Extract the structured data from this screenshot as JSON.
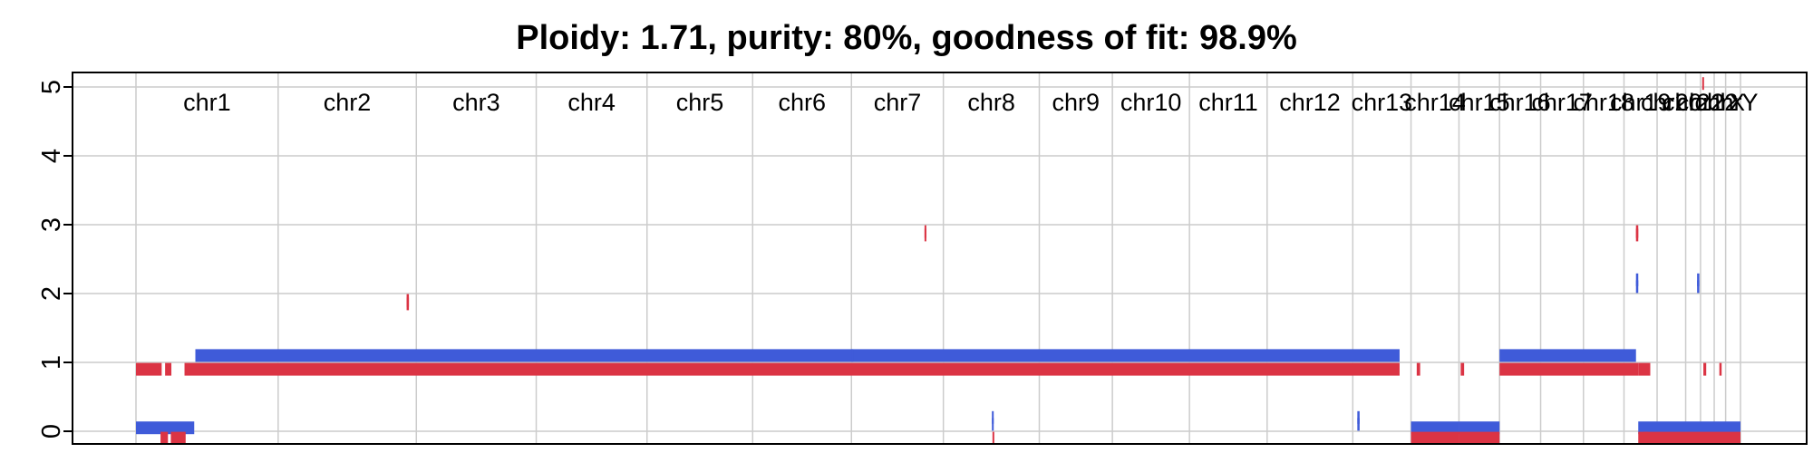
{
  "chart_data": {
    "type": "copy-number-segments",
    "title": "Ploidy: 1.71, purity: 80%, goodness of fit: 98.9%",
    "xlabel": "",
    "ylabel": "",
    "ylim": [
      0,
      5
    ],
    "yticks": [
      0,
      1,
      2,
      3,
      4,
      5
    ],
    "grid": true,
    "colors": {
      "major": "#3f5bd9",
      "minor": "#db3444",
      "grid": "#cccccc"
    },
    "chromosomes": [
      {
        "name": "chr1",
        "start": 0.0,
        "end": 249.0
      },
      {
        "name": "chr2",
        "start": 249.0,
        "end": 491.0
      },
      {
        "name": "chr3",
        "start": 491.0,
        "end": 701.0
      },
      {
        "name": "chr4",
        "start": 701.0,
        "end": 895.0
      },
      {
        "name": "chr5",
        "start": 895.0,
        "end": 1080.0
      },
      {
        "name": "chr6",
        "start": 1080.0,
        "end": 1253.0
      },
      {
        "name": "chr7",
        "start": 1253.0,
        "end": 1414.0
      },
      {
        "name": "chr8",
        "start": 1414.0,
        "end": 1582.0
      },
      {
        "name": "chr9",
        "start": 1582.0,
        "end": 1710.0
      },
      {
        "name": "chr10",
        "start": 1710.0,
        "end": 1845.0
      },
      {
        "name": "chr11",
        "start": 1845.0,
        "end": 1981.0
      },
      {
        "name": "chr12",
        "start": 1981.0,
        "end": 2131.0
      },
      {
        "name": "chr13",
        "start": 2131.0,
        "end": 2233.0
      },
      {
        "name": "chr14",
        "start": 2233.0,
        "end": 2317.0
      },
      {
        "name": "chr15",
        "start": 2317.0,
        "end": 2388.0
      },
      {
        "name": "chr16",
        "start": 2388.0,
        "end": 2460.0
      },
      {
        "name": "chr17",
        "start": 2460.0,
        "end": 2535.0
      },
      {
        "name": "chr18",
        "start": 2535.0,
        "end": 2606.0
      },
      {
        "name": "chr19",
        "start": 2606.0,
        "end": 2664.0
      },
      {
        "name": "chr20",
        "start": 2664.0,
        "end": 2714.0
      },
      {
        "name": "chr21",
        "start": 2714.0,
        "end": 2740.0
      },
      {
        "name": "chr22",
        "start": 2740.0,
        "end": 2764.0
      },
      {
        "name": "chrX",
        "start": 2764.0,
        "end": 2784.0
      },
      {
        "name": "chrY",
        "start": 2784.0,
        "end": 2810.0
      }
    ],
    "series": [
      {
        "color": "#3f5bd9",
        "segments": [
          {
            "x0": 0.0,
            "x1": 102.0,
            "y": 0.05
          },
          {
            "x0": 104.0,
            "x1": 2213.0,
            "y": 1.1
          },
          {
            "x0": 1253.0,
            "x1": 1256.0,
            "y": 1.1
          },
          {
            "x0": 1499.0,
            "x1": 1502.0,
            "y": 0.1
          },
          {
            "x0": 1499.0,
            "x1": 1502.0,
            "y": 0.2
          },
          {
            "x0": 2139.0,
            "x1": 2143.0,
            "y": 0.1
          },
          {
            "x0": 2139.0,
            "x1": 2143.0,
            "y": 0.2
          },
          {
            "x0": 2233.0,
            "x1": 2317.0,
            "y": 0.05
          },
          {
            "x0": 2317.0,
            "x1": 2388.0,
            "y": 0.05
          },
          {
            "x0": 2388.0,
            "x1": 2627.0,
            "y": 1.1
          },
          {
            "x0": 2627.0,
            "x1": 2631.0,
            "y": 2.1
          },
          {
            "x0": 2627.0,
            "x1": 2631.0,
            "y": 2.2
          },
          {
            "x0": 2631.0,
            "x1": 2810.0,
            "y": 0.05
          },
          {
            "x0": 2734.0,
            "x1": 2738.0,
            "y": 2.1
          },
          {
            "x0": 2734.0,
            "x1": 2738.0,
            "y": 2.2
          }
        ]
      },
      {
        "color": "#db3444",
        "segments": [
          {
            "x0": 0.0,
            "x1": 45.0,
            "y": 0.9
          },
          {
            "x0": 51.0,
            "x1": 62.0,
            "y": 0.9
          },
          {
            "x0": 85.0,
            "x1": 2213.0,
            "y": 0.9
          },
          {
            "x0": 43.0,
            "x1": 56.0,
            "y": -0.1
          },
          {
            "x0": 61.0,
            "x1": 87.0,
            "y": -0.1
          },
          {
            "x0": 474.0,
            "x1": 478.0,
            "y": 1.85
          },
          {
            "x0": 474.0,
            "x1": 478.0,
            "y": 1.9
          },
          {
            "x0": 1381.0,
            "x1": 1384.0,
            "y": 2.85
          },
          {
            "x0": 1381.0,
            "x1": 1384.0,
            "y": 2.9
          },
          {
            "x0": 1500.0,
            "x1": 1502.0,
            "y": -0.1
          },
          {
            "x0": 2233.0,
            "x1": 2317.0,
            "y": -0.1
          },
          {
            "x0": 2243.0,
            "x1": 2249.0,
            "y": 0.9
          },
          {
            "x0": 2317.0,
            "x1": 2388.0,
            "y": -0.1
          },
          {
            "x0": 2320.0,
            "x1": 2326.0,
            "y": 0.9
          },
          {
            "x0": 2388.0,
            "x1": 2631.0,
            "y": 0.9
          },
          {
            "x0": 2627.0,
            "x1": 2631.0,
            "y": 2.85
          },
          {
            "x0": 2627.0,
            "x1": 2631.0,
            "y": 2.9
          },
          {
            "x0": 2631.0,
            "x1": 2652.0,
            "y": 0.9
          },
          {
            "x0": 2631.0,
            "x1": 2810.0,
            "y": -0.1
          },
          {
            "x0": 2640.0,
            "x1": 2648.0,
            "y": -0.1
          },
          {
            "x0": 2743.0,
            "x1": 2746.0,
            "y": 5.05
          },
          {
            "x0": 2745.0,
            "x1": 2750.0,
            "y": 0.9
          },
          {
            "x0": 2773.0,
            "x1": 2777.0,
            "y": 0.9
          }
        ]
      }
    ]
  }
}
